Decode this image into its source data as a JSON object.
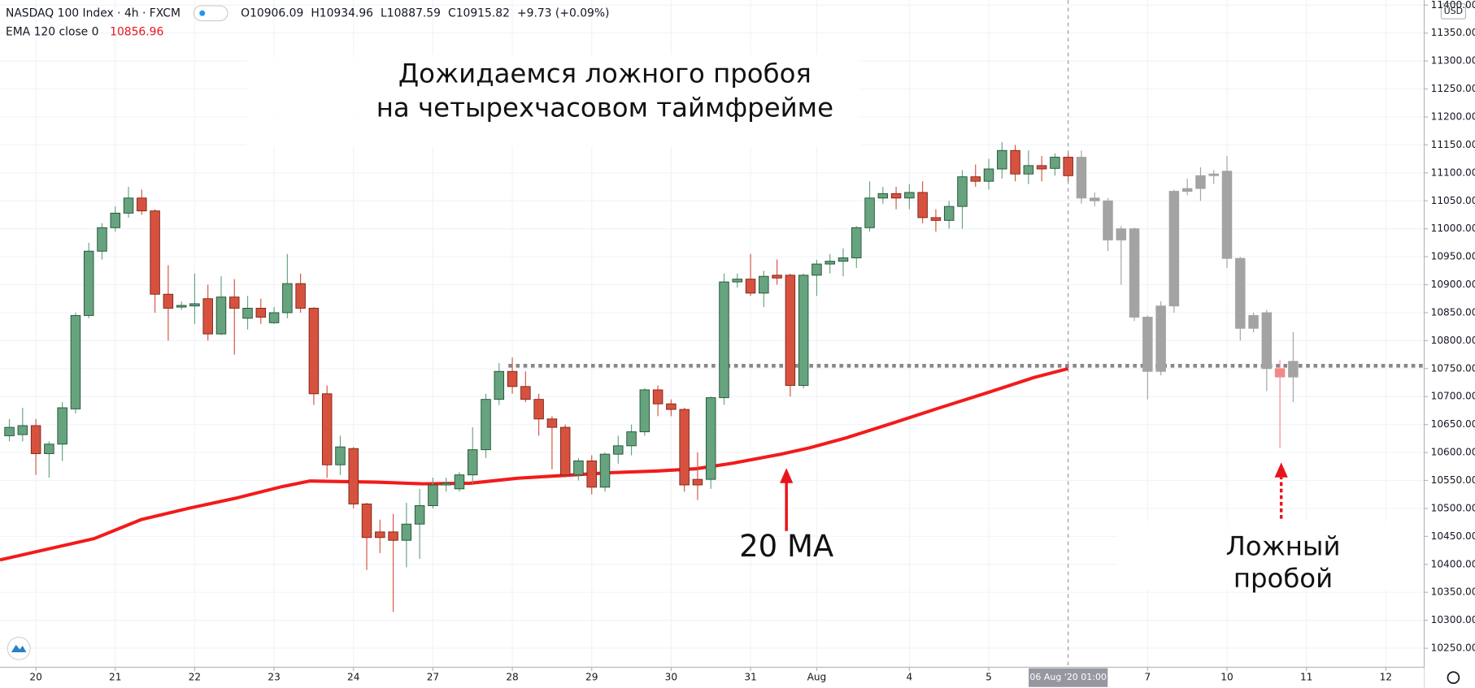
{
  "chart_data": {
    "type": "candlestick",
    "title": "NASDAQ 100 Index · 4h · FXCM",
    "ohlc": [
      "O10906.09",
      "H10934.96",
      "L10887.59",
      "C10915.82",
      "+9.73 (+0.09%)"
    ],
    "ema": {
      "label": "EMA 120 close 0",
      "last_value": 10856.96,
      "color": "#f21b1b",
      "x": [
        -0.71,
        6.4,
        9.95,
        13.5,
        17.05,
        20.6,
        22.7,
        27.7,
        31.26,
        34.8,
        38.4,
        41.9,
        45.5,
        49.0,
        51.9,
        54.7,
        58.3,
        60.4,
        63.2,
        66.8,
        70.3,
        73.9,
        77.4,
        80
      ],
      "values": [
        10408,
        10446,
        10480,
        10500,
        10518,
        10539,
        10549,
        10547,
        10544,
        10545,
        10554,
        10559,
        10564,
        10567,
        10571,
        10581,
        10597,
        10608,
        10626,
        10653,
        10680,
        10707,
        10734,
        10750
      ]
    },
    "currency": "USD",
    "annotations": [
      "Дожидаемся ложного пробоя",
      "на четырехчасовом таймфрейме",
      "20 MA",
      "Ложный",
      "пробой"
    ],
    "level": {
      "value": 10755,
      "from_x": 37.7,
      "color": "#888888"
    },
    "crosshair": {
      "value": 80,
      "label": "06 Aug '20  01:00"
    },
    "series": [
      {
        "up_color": "#66a37e",
        "down_color": "#d6523f",
        "x": [
          0,
          1,
          2,
          3,
          4,
          5,
          6,
          7,
          8,
          9,
          10,
          11,
          12,
          13,
          14,
          15,
          16,
          17,
          18,
          19,
          20,
          21,
          22,
          23,
          24,
          25,
          26,
          27,
          28,
          29,
          30,
          31,
          32,
          33,
          34,
          35,
          36,
          37,
          38,
          39,
          40,
          41,
          42,
          43,
          44,
          45,
          46,
          47,
          48,
          49,
          50,
          51,
          52,
          53,
          54,
          55,
          56,
          57,
          58,
          59,
          60,
          61,
          62,
          63,
          64,
          65,
          66,
          67,
          68,
          69,
          70,
          71,
          72,
          73,
          74,
          75,
          76,
          77,
          78,
          79,
          80
        ],
        "open": [
          10630,
          10632,
          10648,
          10598,
          10615,
          10678,
          10845,
          10960,
          11002,
          11028,
          11055,
          11032,
          10883,
          10860,
          10862,
          10875,
          10812,
          10878,
          10840,
          10858,
          10832,
          10850,
          10902,
          10858,
          10705,
          10578,
          10607,
          10508,
          10458,
          10458,
          10443,
          10472,
          10505,
          10542,
          10535,
          10560,
          10605,
          10695,
          10745,
          10718,
          10695,
          10660,
          10645,
          10560,
          10585,
          10538,
          10597,
          10612,
          10637,
          10712,
          10687,
          10677,
          10552,
          10552,
          10698,
          10905,
          10910,
          10885,
          10917,
          10917,
          10720,
          10917,
          10937,
          10942,
          10948,
          11002,
          11055,
          11063,
          11055,
          11065,
          11020,
          11015,
          11040,
          11093,
          11085,
          11107,
          11140,
          11098,
          11113,
          11108,
          11128
        ],
        "high": [
          10660,
          10680,
          10660,
          10620,
          10690,
          10850,
          10975,
          11010,
          11040,
          11075,
          11070,
          11035,
          10935,
          10870,
          10920,
          10900,
          10915,
          10910,
          10880,
          10875,
          10860,
          10955,
          10920,
          10860,
          10720,
          10630,
          10610,
          10510,
          10480,
          10490,
          10510,
          10535,
          10555,
          10555,
          10565,
          10645,
          10705,
          10760,
          10770,
          10745,
          10705,
          10665,
          10650,
          10590,
          10595,
          10600,
          10630,
          10650,
          10715,
          10720,
          10695,
          10680,
          10600,
          10700,
          10920,
          10920,
          10955,
          10925,
          10945,
          10920,
          10920,
          10945,
          10955,
          10965,
          11005,
          11085,
          11075,
          11075,
          11080,
          11085,
          11035,
          11050,
          11105,
          11115,
          11125,
          11155,
          11150,
          11140,
          11130,
          11135,
          11135
        ],
        "low": [
          10620,
          10620,
          10560,
          10555,
          10585,
          10670,
          10840,
          10945,
          10995,
          11020,
          11025,
          10850,
          10800,
          10855,
          10830,
          10800,
          10810,
          10775,
          10820,
          10830,
          10830,
          10840,
          10850,
          10685,
          10555,
          10560,
          10500,
          10390,
          10420,
          10315,
          10395,
          10410,
          10500,
          10530,
          10530,
          10545,
          10590,
          10685,
          10705,
          10690,
          10630,
          10570,
          10555,
          10550,
          10525,
          10530,
          10580,
          10595,
          10630,
          10665,
          10665,
          10530,
          10515,
          10535,
          10685,
          10895,
          10880,
          10860,
          10900,
          10700,
          10715,
          10880,
          10920,
          10915,
          10930,
          10995,
          11045,
          11035,
          11035,
          11010,
          10995,
          11000,
          11000,
          11075,
          11070,
          11090,
          11085,
          11080,
          11085,
          11095,
          11085
        ],
        "close": [
          10645,
          10648,
          10598,
          10615,
          10680,
          10845,
          10960,
          11002,
          11028,
          11055,
          11032,
          10883,
          10858,
          10863,
          10866,
          10812,
          10878,
          10858,
          10858,
          10842,
          10850,
          10902,
          10858,
          10705,
          10578,
          10610,
          10508,
          10448,
          10448,
          10443,
          10472,
          10505,
          10542,
          10545,
          10560,
          10605,
          10695,
          10745,
          10718,
          10695,
          10660,
          10645,
          10560,
          10585,
          10538,
          10597,
          10612,
          10637,
          10712,
          10687,
          10677,
          10542,
          10542,
          10698,
          10905,
          10910,
          10885,
          10915,
          10912,
          10720,
          10917,
          10937,
          10942,
          10948,
          11002,
          11055,
          11063,
          11055,
          11065,
          11020,
          11015,
          11040,
          11093,
          11085,
          11107,
          11140,
          11098,
          11113,
          11107,
          11128,
          11095
        ]
      },
      {
        "colors": [
          "#a3a3a3",
          "#a3a3a3",
          "#a3a3a3",
          "#a3a3a3",
          "#a3a3a3",
          "#a3a3a3",
          "#a3a3a3",
          "#a3a3a3",
          "#a3a3a3",
          "#a3a3a3",
          "#a3a3a3",
          "#a3a3a3",
          "#a3a3a3",
          "#a3a3a3",
          "#a3a3a3",
          "#f08a8a",
          "#a3a3a3"
        ],
        "x": [
          81,
          82,
          83,
          84,
          85,
          86,
          87,
          88,
          89,
          90,
          91,
          92,
          93,
          94,
          95,
          96,
          97
        ],
        "open": [
          11128,
          11055,
          11050,
          11000,
          11000,
          10842,
          10745,
          10862,
          11067,
          11072,
          11095,
          11103,
          10947,
          10845,
          10850,
          10750,
          10735
        ],
        "high": [
          11140,
          11065,
          11055,
          11005,
          11002,
          10845,
          10870,
          11070,
          11090,
          11110,
          11105,
          11130,
          10950,
          10850,
          10855,
          10765,
          10815
        ],
        "low": [
          11045,
          11040,
          10960,
          10900,
          10835,
          10695,
          10738,
          10850,
          11060,
          11050,
          11080,
          10930,
          10800,
          10815,
          10710,
          10608,
          10690
        ],
        "close": [
          11055,
          11050,
          10980,
          10980,
          10842,
          10745,
          10862,
          11067,
          11072,
          11095,
          11098,
          10947,
          10822,
          10822,
          10750,
          10735,
          10763
        ]
      }
    ],
    "xlim": [
      -0.71,
      106.9
    ],
    "xticks": [
      {
        "value": 2,
        "label": "20"
      },
      {
        "value": 8,
        "label": "21"
      },
      {
        "value": 14,
        "label": "22"
      },
      {
        "value": 20,
        "label": "23"
      },
      {
        "value": 26,
        "label": "24"
      },
      {
        "value": 32,
        "label": "27"
      },
      {
        "value": 38,
        "label": "28"
      },
      {
        "value": 44,
        "label": "29"
      },
      {
        "value": 50,
        "label": "30"
      },
      {
        "value": 56,
        "label": "31"
      },
      {
        "value": 61,
        "label": "Aug"
      },
      {
        "value": 68,
        "label": "4"
      },
      {
        "value": 74,
        "label": "5"
      },
      {
        "value": 86,
        "label": "7"
      },
      {
        "value": 92,
        "label": "10"
      },
      {
        "value": 98,
        "label": "11"
      },
      {
        "value": 104,
        "label": "12"
      }
    ],
    "ylim": [
      10216,
      11409
    ],
    "yticks": [
      {
        "value": 10250,
        "label": "10250.00"
      },
      {
        "value": 10300,
        "label": "10300.00"
      },
      {
        "value": 10350,
        "label": "10350.00"
      },
      {
        "value": 10400,
        "label": "10400.00"
      },
      {
        "value": 10450,
        "label": "10450.00"
      },
      {
        "value": 10500,
        "label": "10500.00"
      },
      {
        "value": 10550,
        "label": "10550.00"
      },
      {
        "value": 10600,
        "label": "10600.00"
      },
      {
        "value": 10650,
        "label": "10650.00"
      },
      {
        "value": 10700,
        "label": "10700.00"
      },
      {
        "value": 10750,
        "label": "10750.00"
      },
      {
        "value": 10800,
        "label": "10800.00"
      },
      {
        "value": 10850,
        "label": "10850.00"
      },
      {
        "value": 10900,
        "label": "10900.00"
      },
      {
        "value": 10950,
        "label": "10950.00"
      },
      {
        "value": 11000,
        "label": "11000.00"
      },
      {
        "value": 11050,
        "label": "11050.00"
      },
      {
        "value": 11100,
        "label": "11100.00"
      },
      {
        "value": 11150,
        "label": "11150.00"
      },
      {
        "value": 11200,
        "label": "11200.00"
      },
      {
        "value": 11250,
        "label": "11250.00"
      },
      {
        "value": 11300,
        "label": "11300.00"
      },
      {
        "value": 11350,
        "label": "11350.00"
      },
      {
        "value": 11400,
        "label": "11400.00"
      }
    ],
    "grid": true
  }
}
